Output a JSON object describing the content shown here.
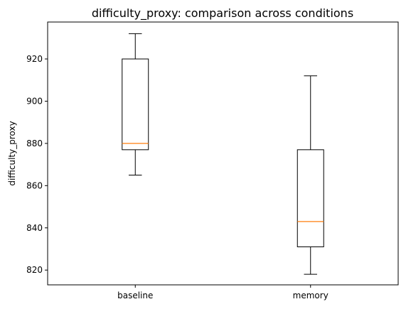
{
  "chart_data": {
    "type": "box",
    "title": "difficulty_proxy: comparison across conditions",
    "xlabel": "",
    "ylabel": "difficulty_proxy",
    "ylim": [
      813,
      937.5
    ],
    "yticks": [
      820,
      840,
      860,
      880,
      900,
      920
    ],
    "categories": [
      "baseline",
      "memory"
    ],
    "boxes": [
      {
        "category": "baseline",
        "whisker_low": 865,
        "q1": 877,
        "median": 880,
        "q3": 920,
        "whisker_high": 932
      },
      {
        "category": "memory",
        "whisker_low": 818,
        "q1": 831,
        "median": 843,
        "q3": 877,
        "whisker_high": 912
      }
    ],
    "grid": false,
    "colors": {
      "box": "#000000",
      "median": "#ff7f0e",
      "axes": "#000000"
    }
  }
}
